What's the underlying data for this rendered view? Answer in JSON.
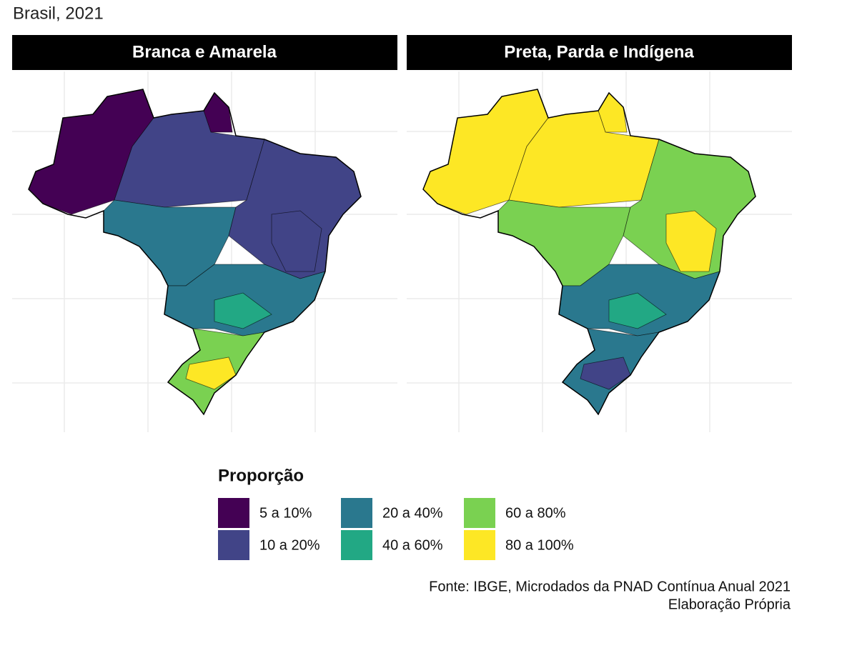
{
  "subtitle": "Brasil, 2021",
  "panels": [
    {
      "title": "Branca e Amarela"
    },
    {
      "title": "Preta, Parda e Indígena"
    }
  ],
  "legend": {
    "title": "Proporção",
    "items": [
      {
        "label": "5 a 10%",
        "color": "#440154"
      },
      {
        "label": "10 a 20%",
        "color": "#414487"
      },
      {
        "label": "20 a 40%",
        "color": "#2a788e"
      },
      {
        "label": "40 a 60%",
        "color": "#22a884"
      },
      {
        "label": "60 a 80%",
        "color": "#7ad151"
      },
      {
        "label": "80 a 100%",
        "color": "#fde725"
      }
    ]
  },
  "caption": [
    "Fonte: IBGE, Microdados da PNAD Contínua Anual 2021",
    "Elaboração Própria"
  ]
}
